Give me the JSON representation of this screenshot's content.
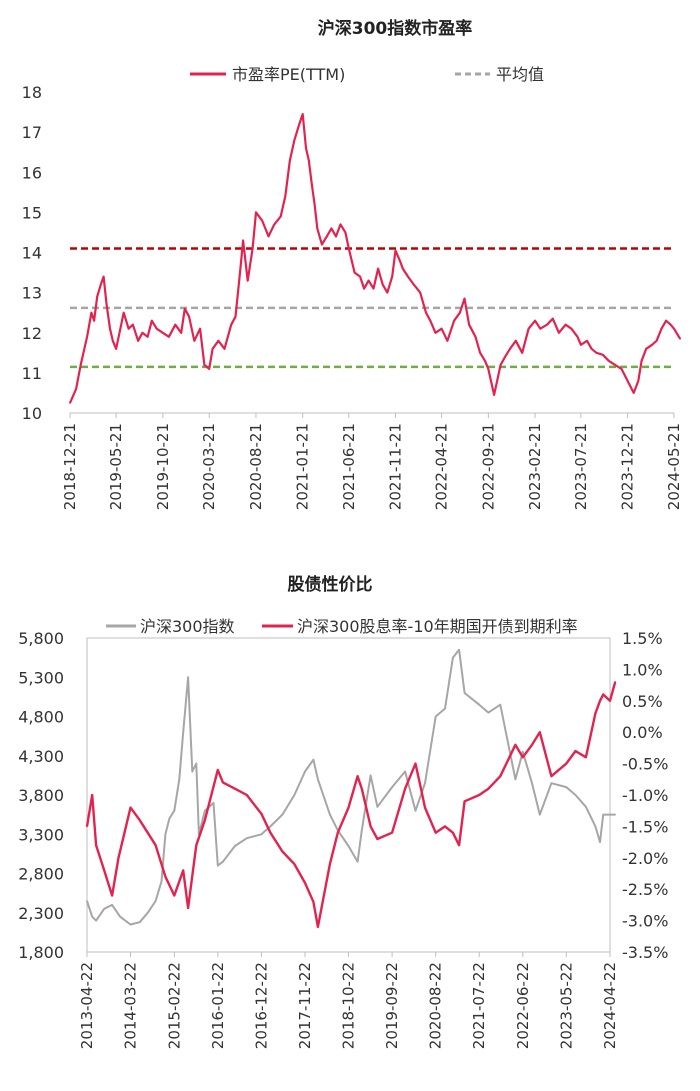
{
  "chart_data": [
    {
      "type": "line",
      "title": "沪深300指数市盈率",
      "legend": [
        {
          "name": "市盈率PE(TTM)",
          "color": "#e3234f",
          "style": "solid"
        },
        {
          "name": "平均值",
          "color": "#a6a6a6",
          "style": "dashed"
        }
      ],
      "legend_position": "top",
      "ylim": [
        10,
        18
      ],
      "y_ticks": [
        "10",
        "11",
        "12",
        "13",
        "14",
        "15",
        "16",
        "17",
        "18"
      ],
      "x_ticks": [
        "2018-12-21",
        "2019-05-21",
        "2019-10-21",
        "2020-03-21",
        "2020-08-21",
        "2021-01-21",
        "2021-06-21",
        "2021-11-21",
        "2022-04-21",
        "2022-09-21",
        "2023-02-21",
        "2023-07-21",
        "2023-12-21",
        "2024-05-21"
      ],
      "reference_lines": [
        {
          "value": 14.1,
          "color": "#c00000",
          "style": "dashed"
        },
        {
          "value": 12.62,
          "color": "#a6a6a6",
          "style": "dashed",
          "name": "平均值"
        },
        {
          "value": 11.15,
          "color": "#70ad47",
          "style": "dashed"
        }
      ],
      "series": [
        {
          "name": "市盈率PE(TTM)",
          "color": "#e3234f",
          "x": [
            "2018-12-21",
            "2019-01-10",
            "2019-01-25",
            "2019-02-15",
            "2019-03-01",
            "2019-03-10",
            "2019-03-20",
            "2019-04-01",
            "2019-04-10",
            "2019-04-20",
            "2019-05-01",
            "2019-05-10",
            "2019-05-21",
            "2019-06-01",
            "2019-06-15",
            "2019-07-01",
            "2019-07-15",
            "2019-08-01",
            "2019-08-15",
            "2019-09-01",
            "2019-09-15",
            "2019-10-01",
            "2019-10-21",
            "2019-11-10",
            "2019-12-01",
            "2019-12-20",
            "2020-01-01",
            "2020-01-15",
            "2020-02-01",
            "2020-02-20",
            "2020-03-05",
            "2020-03-21",
            "2020-04-01",
            "2020-04-20",
            "2020-05-10",
            "2020-06-01",
            "2020-06-15",
            "2020-07-01",
            "2020-07-10",
            "2020-07-25",
            "2020-08-10",
            "2020-08-21",
            "2020-09-10",
            "2020-10-01",
            "2020-10-20",
            "2020-11-10",
            "2020-11-25",
            "2020-12-10",
            "2020-12-25",
            "2021-01-10",
            "2021-01-21",
            "2021-02-01",
            "2021-02-10",
            "2021-02-20",
            "2021-03-01",
            "2021-03-10",
            "2021-03-25",
            "2021-04-10",
            "2021-04-25",
            "2021-05-10",
            "2021-05-25",
            "2021-06-10",
            "2021-06-21",
            "2021-07-10",
            "2021-07-28",
            "2021-08-10",
            "2021-08-25",
            "2021-09-10",
            "2021-09-25",
            "2021-10-10",
            "2021-10-25",
            "2021-11-10",
            "2021-11-21",
            "2021-12-05",
            "2021-12-15",
            "2022-01-01",
            "2022-01-20",
            "2022-02-10",
            "2022-03-01",
            "2022-03-15",
            "2022-04-01",
            "2022-04-21",
            "2022-05-10",
            "2022-06-01",
            "2022-06-20",
            "2022-07-05",
            "2022-07-20",
            "2022-08-10",
            "2022-08-25",
            "2022-09-10",
            "2022-09-21",
            "2022-10-10",
            "2022-10-31",
            "2022-11-15",
            "2022-12-01",
            "2022-12-20",
            "2023-01-10",
            "2023-01-31",
            "2023-02-21",
            "2023-03-10",
            "2023-04-01",
            "2023-04-20",
            "2023-05-10",
            "2023-06-01",
            "2023-06-20",
            "2023-07-10",
            "2023-07-21",
            "2023-08-10",
            "2023-08-25",
            "2023-09-10",
            "2023-10-01",
            "2023-10-20",
            "2023-11-10",
            "2023-12-01",
            "2023-12-21",
            "2024-01-10",
            "2024-01-25",
            "2024-02-05",
            "2024-02-20",
            "2024-03-10",
            "2024-03-25",
            "2024-04-10",
            "2024-04-25",
            "2024-05-10",
            "2024-05-21",
            "2024-06-10"
          ],
          "values": [
            10.25,
            10.6,
            11.2,
            11.9,
            12.5,
            12.3,
            12.9,
            13.2,
            13.4,
            12.7,
            12.1,
            11.8,
            11.6,
            12.0,
            12.5,
            12.1,
            12.2,
            11.8,
            12.0,
            11.9,
            12.3,
            12.1,
            12.0,
            11.9,
            12.2,
            12.0,
            12.6,
            12.4,
            11.8,
            12.1,
            11.2,
            11.1,
            11.6,
            11.8,
            11.6,
            12.2,
            12.4,
            13.6,
            14.3,
            13.3,
            14.1,
            15.0,
            14.8,
            14.4,
            14.7,
            14.9,
            15.4,
            16.3,
            16.8,
            17.2,
            17.45,
            16.6,
            16.3,
            15.7,
            15.2,
            14.6,
            14.2,
            14.4,
            14.6,
            14.4,
            14.7,
            14.5,
            14.1,
            13.5,
            13.4,
            13.1,
            13.3,
            13.1,
            13.6,
            13.2,
            13.0,
            13.4,
            14.05,
            13.8,
            13.6,
            13.4,
            13.2,
            13.0,
            12.5,
            12.3,
            12.0,
            12.1,
            11.8,
            12.3,
            12.5,
            12.85,
            12.2,
            11.9,
            11.5,
            11.3,
            11.1,
            10.45,
            11.2,
            11.4,
            11.6,
            11.8,
            11.5,
            12.1,
            12.3,
            12.1,
            12.2,
            12.35,
            12.0,
            12.2,
            12.1,
            11.9,
            11.7,
            11.8,
            11.6,
            11.5,
            11.45,
            11.3,
            11.2,
            11.1,
            10.8,
            10.5,
            10.8,
            11.3,
            11.6,
            11.7,
            11.8,
            12.1,
            12.3,
            12.2,
            12.1,
            11.85
          ]
        }
      ]
    },
    {
      "type": "line",
      "title": "股债性价比",
      "legend": [
        {
          "name": "沪深300指数",
          "color": "#a6a6a6",
          "style": "solid"
        },
        {
          "name": "沪深300股息率-10年期国开债到期利率",
          "color": "#e3234f",
          "style": "solid"
        }
      ],
      "legend_position": "top",
      "ylim_left": [
        1800,
        5800
      ],
      "ylim_right": [
        -3.5,
        1.5
      ],
      "y_ticks_left": [
        "1,800",
        "2,300",
        "2,800",
        "3,300",
        "3,800",
        "4,300",
        "4,800",
        "5,300",
        "5,800"
      ],
      "y_ticks_right": [
        "-3.5%",
        "-3.0%",
        "-2.5%",
        "-2.0%",
        "-1.5%",
        "-1.0%",
        "-0.5%",
        "0.0%",
        "0.5%",
        "1.0%",
        "1.5%"
      ],
      "x_ticks": [
        "2013-04-22",
        "2014-03-22",
        "2015-02-22",
        "2016-01-22",
        "2016-12-22",
        "2017-11-22",
        "2018-10-22",
        "2019-09-22",
        "2020-08-22",
        "2021-07-22",
        "2022-06-22",
        "2023-05-22",
        "2024-04-22"
      ],
      "series": [
        {
          "name": "沪深300指数",
          "axis": "left",
          "color": "#a6a6a6",
          "x": [
            "2013-04-22",
            "2013-06-01",
            "2013-07-01",
            "2013-09-01",
            "2013-11-01",
            "2014-01-01",
            "2014-03-22",
            "2014-06-01",
            "2014-08-01",
            "2014-10-01",
            "2014-11-15",
            "2014-12-15",
            "2015-01-15",
            "2015-02-22",
            "2015-04-01",
            "2015-05-01",
            "2015-06-08",
            "2015-07-10",
            "2015-08-10",
            "2015-08-30",
            "2015-10-15",
            "2015-12-20",
            "2016-01-22",
            "2016-03-01",
            "2016-06-01",
            "2016-09-01",
            "2016-12-22",
            "2017-03-01",
            "2017-06-01",
            "2017-09-01",
            "2017-11-22",
            "2018-01-25",
            "2018-03-01",
            "2018-06-01",
            "2018-08-01",
            "2018-10-22",
            "2018-12-31",
            "2019-02-01",
            "2019-04-10",
            "2019-06-01",
            "2019-09-22",
            "2019-12-31",
            "2020-03-20",
            "2020-06-01",
            "2020-08-22",
            "2020-11-01",
            "2021-01-01",
            "2021-02-18",
            "2021-04-01",
            "2021-07-22",
            "2021-10-01",
            "2021-12-31",
            "2022-04-26",
            "2022-06-22",
            "2022-09-01",
            "2022-10-31",
            "2023-01-28",
            "2023-05-22",
            "2023-08-01",
            "2023-10-20",
            "2024-01-01",
            "2024-02-05",
            "2024-03-01",
            "2024-04-22",
            "2024-06-01"
          ],
          "values": [
            2450,
            2250,
            2200,
            2350,
            2400,
            2250,
            2150,
            2180,
            2300,
            2450,
            2700,
            3300,
            3500,
            3600,
            4000,
            4600,
            5300,
            4100,
            4200,
            3300,
            3600,
            3700,
            2900,
            2950,
            3150,
            3250,
            3300,
            3400,
            3550,
            3800,
            4100,
            4250,
            4000,
            3550,
            3350,
            3150,
            2950,
            3350,
            4050,
            3650,
            3900,
            4100,
            3600,
            3950,
            4800,
            4900,
            5550,
            5650,
            5100,
            4950,
            4850,
            4950,
            4000,
            4350,
            3950,
            3550,
            3950,
            3900,
            3800,
            3650,
            3400,
            3200,
            3550,
            3550,
            3550
          ]
        },
        {
          "name": "沪深300股息率-10年期国开债到期利率",
          "axis": "right",
          "color": "#e3234f",
          "x": [
            "2013-04-22",
            "2013-06-01",
            "2013-07-01",
            "2013-09-01",
            "2013-11-01",
            "2013-12-20",
            "2014-03-22",
            "2014-06-01",
            "2014-08-01",
            "2014-10-01",
            "2014-12-15",
            "2015-02-22",
            "2015-05-01",
            "2015-06-08",
            "2015-08-10",
            "2015-10-15",
            "2016-01-22",
            "2016-03-01",
            "2016-06-01",
            "2016-09-01",
            "2016-12-22",
            "2017-03-01",
            "2017-06-01",
            "2017-09-01",
            "2017-11-22",
            "2018-01-25",
            "2018-03-01",
            "2018-06-01",
            "2018-08-01",
            "2018-10-22",
            "2018-12-31",
            "2019-02-01",
            "2019-04-10",
            "2019-06-01",
            "2019-09-22",
            "2019-12-31",
            "2020-03-20",
            "2020-05-01",
            "2020-06-01",
            "2020-08-22",
            "2020-11-01",
            "2021-01-01",
            "2021-02-18",
            "2021-04-01",
            "2021-07-22",
            "2021-10-01",
            "2021-12-31",
            "2022-04-26",
            "2022-06-22",
            "2022-09-01",
            "2022-10-31",
            "2023-01-28",
            "2023-05-22",
            "2023-08-01",
            "2023-10-20",
            "2024-01-01",
            "2024-02-05",
            "2024-03-01",
            "2024-04-22",
            "2024-06-01"
          ],
          "values": [
            -1.5,
            -1.0,
            -1.8,
            -2.2,
            -2.6,
            -2.0,
            -1.2,
            -1.4,
            -1.6,
            -1.8,
            -2.3,
            -2.6,
            -2.2,
            -2.8,
            -1.8,
            -1.4,
            -0.6,
            -0.8,
            -0.9,
            -1.0,
            -1.3,
            -1.6,
            -1.9,
            -2.1,
            -2.4,
            -2.7,
            -3.1,
            -2.1,
            -1.6,
            -1.2,
            -0.7,
            -0.9,
            -1.5,
            -1.7,
            -1.6,
            -0.9,
            -0.5,
            -0.9,
            -1.2,
            -1.6,
            -1.5,
            -1.6,
            -1.8,
            -1.1,
            -1.0,
            -0.9,
            -0.7,
            -0.2,
            -0.4,
            -0.2,
            0.0,
            -0.7,
            -0.5,
            -0.3,
            -0.4,
            0.3,
            0.5,
            0.6,
            0.5,
            0.8
          ]
        }
      ]
    }
  ]
}
